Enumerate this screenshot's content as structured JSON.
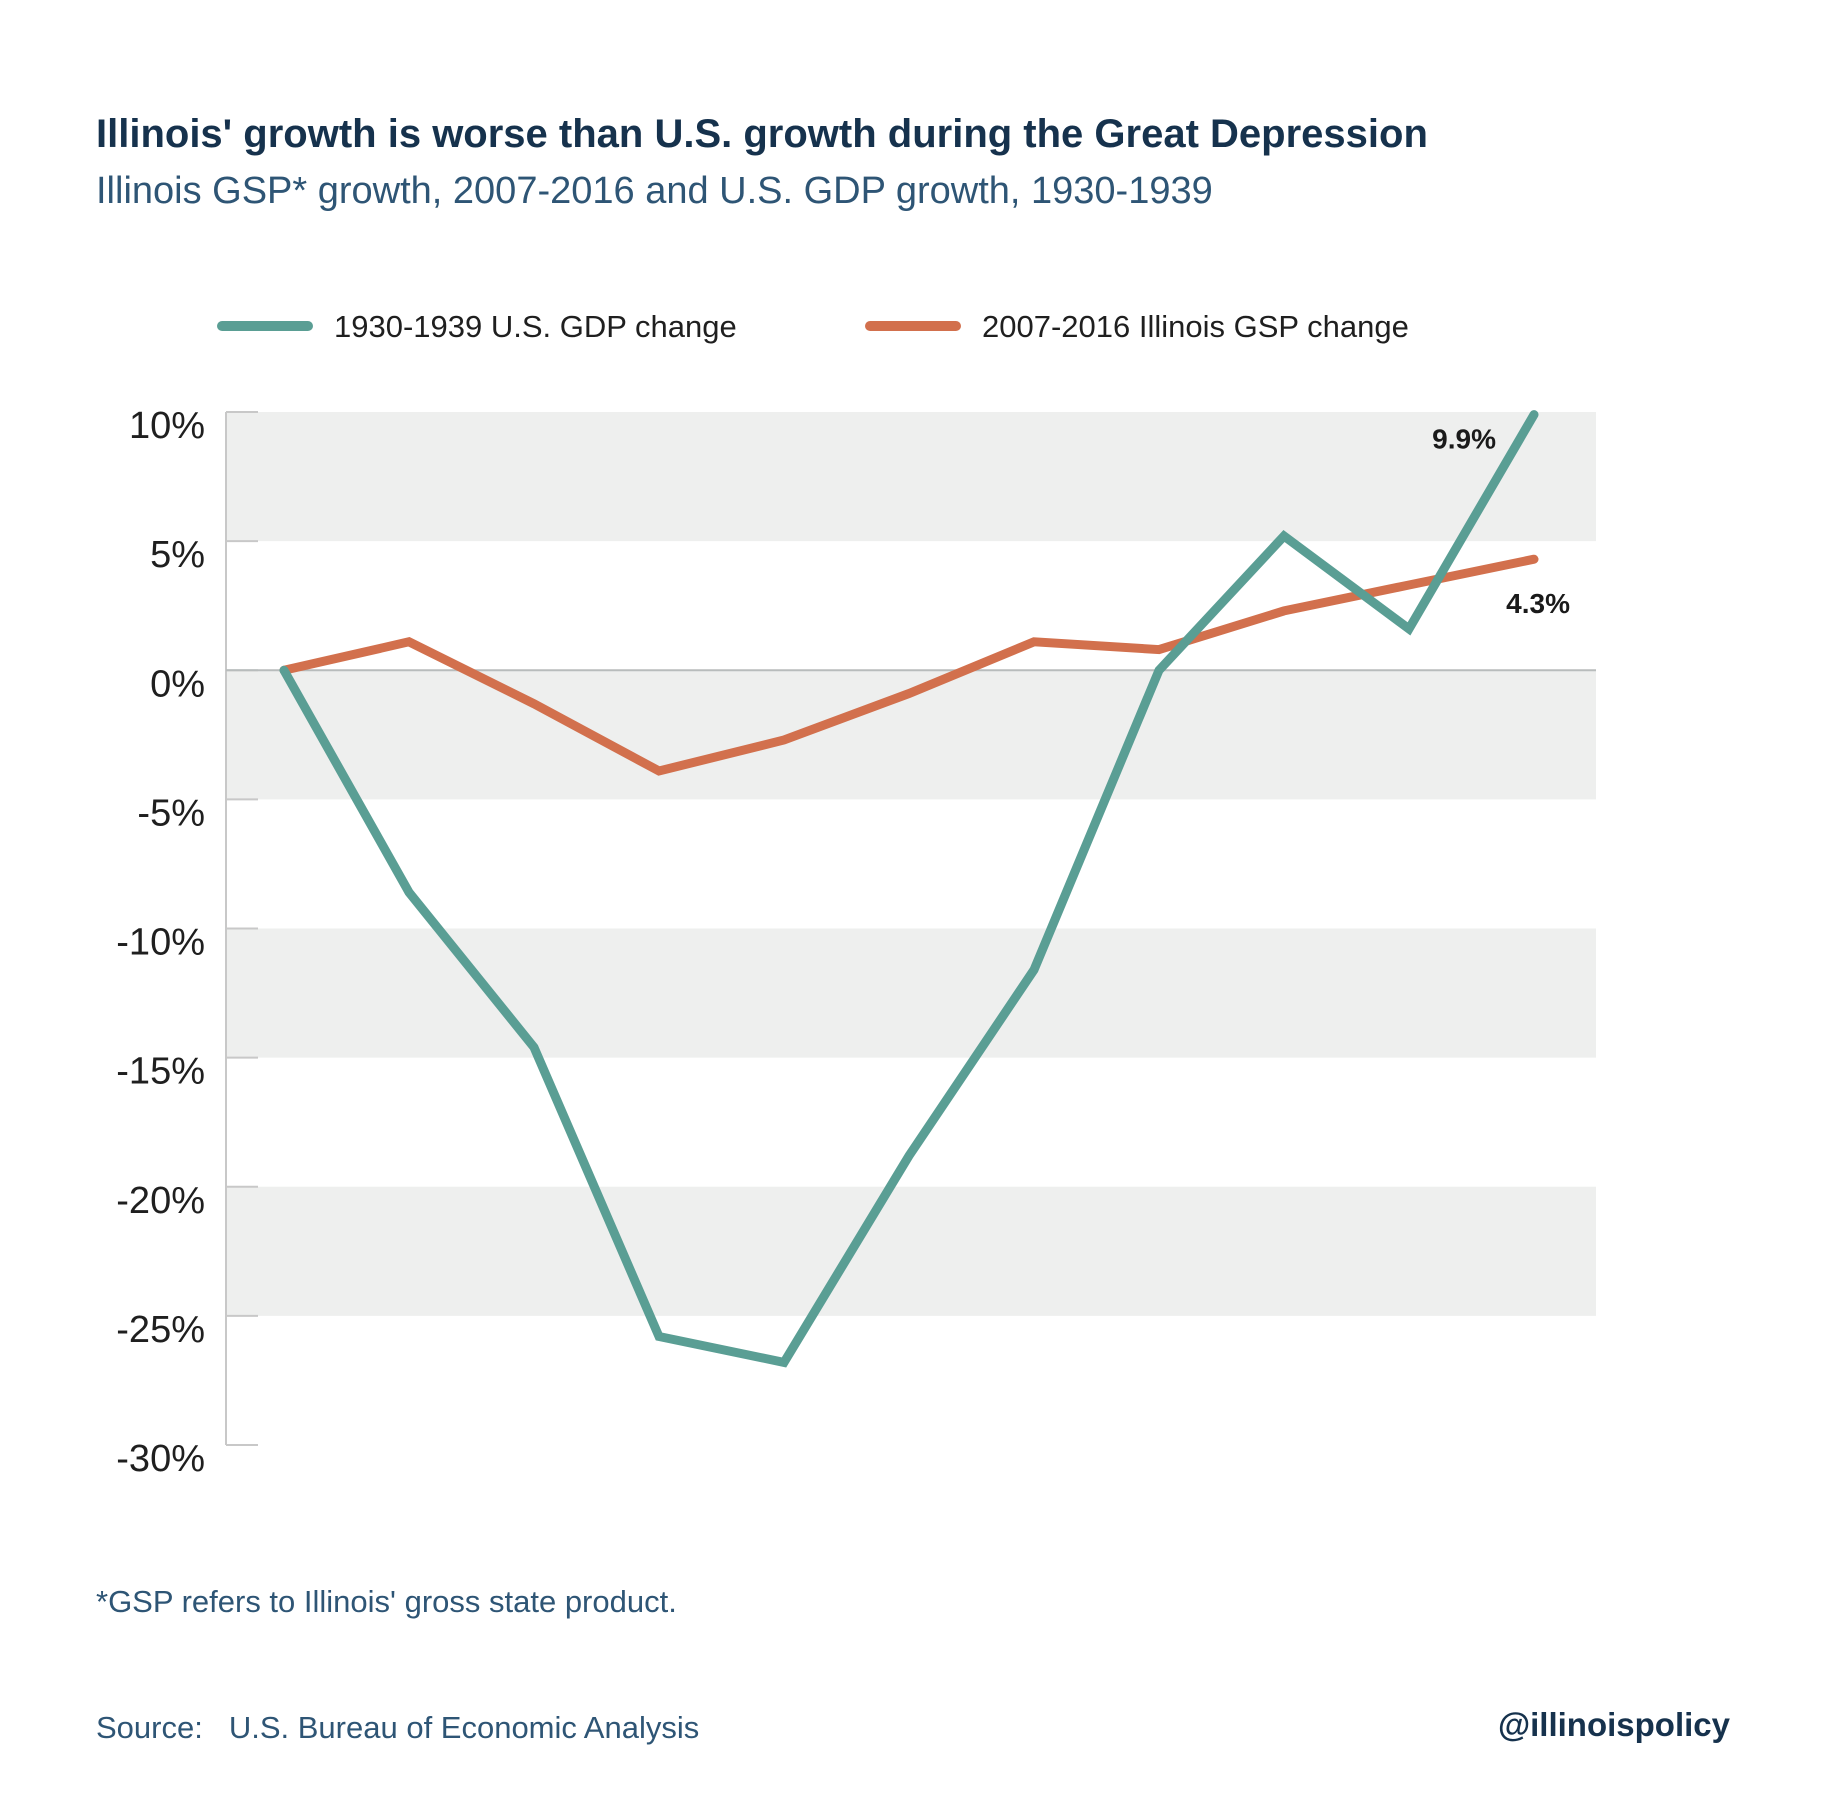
{
  "header": {
    "title": "Illinois' growth is worse than U.S. growth during the Great Depression",
    "subtitle": "Illinois GSP* growth, 2007-2016 and U.S. GDP growth, 1930-1939"
  },
  "footer": {
    "footnote": "*GSP refers to Illinois' gross state product.",
    "source_label": "Source:",
    "source_value": "U.S. Bureau of Economic Analysis",
    "handle": "@illinoispolicy"
  },
  "colors": {
    "us_gdp": "#5a9e94",
    "il_gsp": "#d2704d",
    "band": "#eeefee",
    "axis": "#c8c8c8",
    "zero_line": "#b8bcbc"
  },
  "chart_data": {
    "type": "line",
    "x": [
      1,
      2,
      3,
      4,
      5,
      6,
      7,
      8,
      9,
      10,
      11
    ],
    "ylim": [
      -30,
      10
    ],
    "yticks": [
      10,
      5,
      0,
      -5,
      -10,
      -15,
      -20,
      -25,
      -30
    ],
    "ytick_labels": [
      "10%",
      "5%",
      "0%",
      "-5%",
      "-10%",
      "-15%",
      "-20%",
      "-25%",
      "-30%"
    ],
    "grid": "alternating horizontal bands",
    "legend_position": "top",
    "series": [
      {
        "name": "1930-1939 U.S. GDP change",
        "values": [
          0,
          -8.6,
          -14.6,
          -25.8,
          -26.8,
          -18.8,
          -11.6,
          0,
          5.2,
          1.6,
          9.9
        ],
        "end_label": "9.9%"
      },
      {
        "name": "2007-2016 Illinois GSP change",
        "values": [
          0,
          1.1,
          -1.3,
          -3.9,
          -2.7,
          -0.9,
          1.1,
          0.8,
          2.3,
          3.3,
          4.3
        ],
        "end_label": "4.3%"
      }
    ]
  }
}
